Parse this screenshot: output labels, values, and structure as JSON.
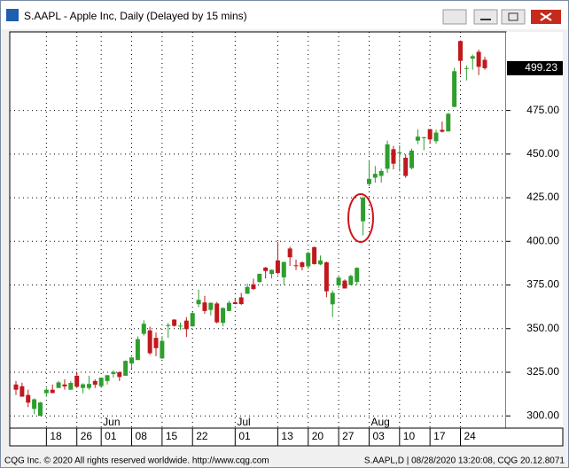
{
  "chart_data": {
    "type": "candlestick",
    "title": "S.AAPL - Apple Inc, Daily (Delayed by 15 mins)",
    "footer_left": "CQG Inc. © 2020 All rights reserved worldwide. http://www.cqg.com",
    "footer_right": "S.AAPL,D | 08/28/2020 13:20:08, CQG 20.12.8071",
    "price_label": "499.23",
    "months": [
      "Jun",
      "Jul",
      "Aug"
    ],
    "categories": [
      null,
      null,
      null,
      null,
      null,
      "18",
      null,
      null,
      null,
      null,
      "26",
      null,
      null,
      null,
      "01",
      null,
      null,
      null,
      null,
      "08",
      null,
      null,
      null,
      null,
      "15",
      null,
      null,
      null,
      null,
      "22",
      null,
      null,
      null,
      null,
      null,
      null,
      "01",
      null,
      null,
      null,
      null,
      null,
      null,
      "13",
      null,
      null,
      null,
      null,
      "20",
      null,
      null,
      null,
      null,
      "27",
      null,
      null,
      null,
      null,
      "03",
      null,
      null,
      null,
      null,
      "10",
      null,
      null,
      null,
      null,
      "17",
      null,
      null,
      null,
      null,
      "24",
      null,
      null,
      null,
      null
    ],
    "open": [
      318,
      317,
      312,
      304,
      300,
      313,
      315,
      316,
      318,
      315,
      323,
      316,
      316,
      320,
      317,
      320,
      324,
      325,
      323,
      330,
      332,
      347,
      349,
      344.7,
      333,
      351.5,
      355.2,
      351.4,
      354.6,
      351.3,
      364,
      365,
      360.7,
      364.4,
      353.3,
      360.1,
      365.1,
      367.9,
      370,
      375.4,
      376.7,
      385,
      381.3,
      389.1,
      379.4,
      395.9,
      386.3,
      387.95,
      385.7,
      396.7,
      386.8,
      387.99,
      363.95,
      374.8,
      377.5,
      375,
      376.75,
      411.5,
      432.8,
      436.5,
      437.5,
      441.6,
      452.8,
      450.4,
      447.9,
      441.99,
      457.7,
      459.3,
      464.3,
      457.4,
      463.9,
      463,
      477,
      514.8,
      498.8,
      504.7,
      508.6,
      504
    ],
    "high": [
      320,
      319,
      315,
      310,
      308,
      316,
      318,
      320,
      321,
      320,
      325,
      318.7,
      323,
      321,
      322,
      323.4,
      326.2,
      325.6,
      331.8,
      333.6,
      345.6,
      354.8,
      351.1,
      347.8,
      345.7,
      353.2,
      355.4,
      353.5,
      356.6,
      359.5,
      372.4,
      368.8,
      365,
      365.3,
      362.2,
      365.9,
      367.4,
      370.5,
      375.8,
      378.6,
      381.5,
      385.3,
      383.9,
      399.8,
      388.3,
      397,
      389.6,
      388.6,
      394,
      397,
      391.9,
      388.4,
      371.9,
      379.6,
      378.2,
      380.9,
      385.2,
      425.7,
      446.6,
      443.2,
      441.6,
      457.7,
      454.7,
      455.1,
      449.9,
      453.1,
      464.2,
      460,
      464.4,
      464,
      468.7,
      473.6,
      499.5,
      515.1,
      500.7,
      507,
      509.9,
      505.8
    ],
    "low": [
      312,
      311,
      305,
      301,
      300,
      311,
      313,
      316,
      315,
      315,
      316,
      313,
      315,
      316,
      316,
      318,
      322,
      320,
      323,
      327,
      332,
      346,
      335,
      334.2,
      332.6,
      344.7,
      351.1,
      349.2,
      345.2,
      351.2,
      362.3,
      358.5,
      357.6,
      353,
      351.3,
      360,
      363.9,
      363.6,
      369.9,
      372.2,
      376.4,
      378.7,
      378.8,
      381,
      375.1,
      385.96,
      383.6,
      383.4,
      384.3,
      386.7,
      386.4,
      368,
      356.6,
      373.3,
      373,
      374.9,
      375.07,
      403.4,
      431.6,
      433.6,
      433.6,
      439.2,
      441.2,
      440,
      436.4,
      441.2,
      455.7,
      452.2,
      455.9,
      456,
      462.4,
      462.9,
      477,
      495.7,
      492.2,
      498.3,
      495.3,
      498.3
    ],
    "close": [
      315,
      311,
      307.6,
      309.5,
      307.7,
      315,
      313.1,
      319.2,
      316.9,
      318.9,
      316.7,
      318.1,
      318.3,
      317.9,
      321.9,
      323.3,
      325.1,
      322.3,
      331.5,
      333.5,
      344,
      352.8,
      335.9,
      338.8,
      343,
      352.1,
      351.6,
      351.7,
      349.7,
      358.9,
      366.5,
      360.1,
      364.8,
      353.6,
      361.8,
      364.8,
      364.1,
      364.1,
      373.9,
      372.7,
      381.4,
      383,
      383.7,
      381.9,
      388.2,
      390.9,
      386.1,
      385.3,
      393.4,
      387,
      389.1,
      371.4,
      370.5,
      379.2,
      373,
      380.2,
      384.8,
      425,
      435.8,
      438.7,
      440.3,
      455.6,
      444.5,
      450.9,
      437.5,
      452,
      460,
      459.6,
      458.4,
      462.3,
      462.8,
      473.1,
      497.5,
      503.4,
      499.3,
      506.1,
      500,
      499.23
    ],
    "up_color": "#2e9e2e",
    "down_color": "#c0181d",
    "ylim": [
      293,
      520
    ],
    "yticks": [
      {
        "value": 300,
        "label": "300.00"
      },
      {
        "value": 325,
        "label": "325.00"
      },
      {
        "value": 350,
        "label": "350.00"
      },
      {
        "value": 375,
        "label": "375.00"
      },
      {
        "value": 400,
        "label": "400.00"
      },
      {
        "value": 425,
        "label": "425.00"
      },
      {
        "value": 450,
        "label": "450.00"
      },
      {
        "value": 475,
        "label": "475.00"
      }
    ],
    "grid": true
  }
}
